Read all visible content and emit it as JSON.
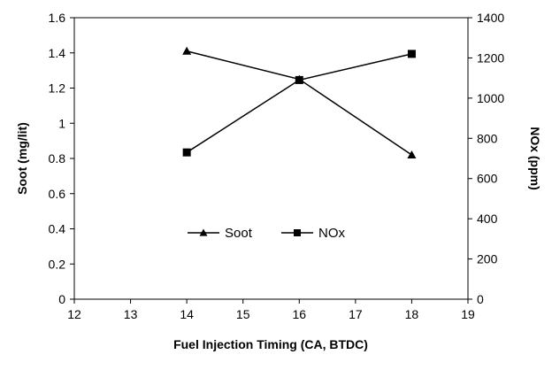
{
  "chart_data": {
    "type": "line",
    "title": "",
    "xlabel": "Fuel Injection Timing (CA, BTDC)",
    "ylabel_left": "Soot (mg/lit)",
    "ylabel_right": "NOx (ppm)",
    "xlim": [
      12,
      19
    ],
    "ylim_left": [
      0,
      1.6
    ],
    "ylim_right": [
      0,
      1400
    ],
    "x_ticks": [
      "12",
      "13",
      "14",
      "15",
      "16",
      "17",
      "18",
      "19"
    ],
    "y_left_ticks": [
      "0",
      "0.2",
      "0.4",
      "0.6",
      "0.8",
      "1",
      "1.2",
      "1.4",
      "1.6"
    ],
    "y_right_ticks": [
      "0",
      "200",
      "400",
      "600",
      "800",
      "1000",
      "1200",
      "1400"
    ],
    "grid": false,
    "legend_position": "lower-center",
    "series": [
      {
        "name": "Soot",
        "axis": "left",
        "marker": "triangle",
        "x": [
          14,
          16,
          18
        ],
        "values": [
          1.41,
          1.25,
          0.82
        ]
      },
      {
        "name": "NOx",
        "axis": "right",
        "marker": "square",
        "x": [
          14,
          16,
          18
        ],
        "values": [
          730,
          1090,
          1220
        ]
      }
    ]
  }
}
